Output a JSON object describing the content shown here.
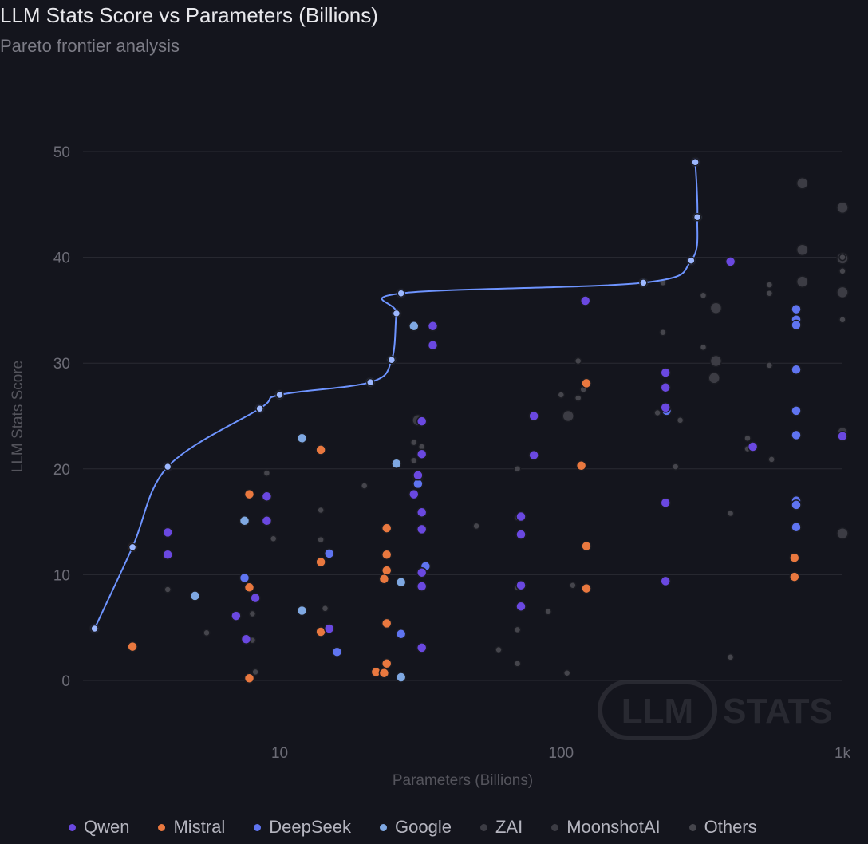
{
  "chart_data": {
    "type": "scatter",
    "title": "LLM Stats Score vs Parameters (Billions)",
    "subtitle": "Pareto frontier analysis",
    "xlabel": "Parameters (Billions)",
    "ylabel": "LLM Stats Score",
    "xscale": "log",
    "xlim": [
      2,
      1000
    ],
    "ylim": [
      0,
      50
    ],
    "xticks": [
      {
        "value": 10,
        "label": "10"
      },
      {
        "value": 100,
        "label": "100"
      },
      {
        "value": 1000,
        "label": "1k"
      }
    ],
    "yticks": [
      0,
      10,
      20,
      30,
      40,
      50
    ],
    "grid": "horizontal",
    "legend_position": "bottom",
    "watermark": "LLM STATS",
    "colors": {
      "Qwen": "#6a48e0",
      "Mistral": "#e9783f",
      "DeepSeek": "#5f74f0",
      "Google": "#7fa8e2",
      "ZAI": "#3c3c44",
      "MoonshotAI": "#3c3c44",
      "Others": "#45454c",
      "frontier": "#6e94ff"
    },
    "series": [
      {
        "name": "Qwen",
        "points": [
          [
            4,
            20.2
          ],
          [
            4,
            14
          ],
          [
            4,
            11.9
          ],
          [
            7,
            6.1
          ],
          [
            7.6,
            3.9
          ],
          [
            8.2,
            7.8
          ],
          [
            9,
            17.4
          ],
          [
            9,
            15.1
          ],
          [
            15,
            4.9
          ],
          [
            32,
            24.5
          ],
          [
            32,
            21.4
          ],
          [
            31,
            19.4
          ],
          [
            30,
            17.6
          ],
          [
            32,
            15.9
          ],
          [
            32,
            14.3
          ],
          [
            32,
            10.2
          ],
          [
            32,
            8.9
          ],
          [
            32,
            3.1
          ],
          [
            35,
            33.5
          ],
          [
            35,
            31.7
          ],
          [
            72,
            15.5
          ],
          [
            72,
            13.8
          ],
          [
            72,
            9
          ],
          [
            72,
            7
          ],
          [
            80,
            25
          ],
          [
            80,
            21.3
          ],
          [
            122,
            35.9
          ],
          [
            235,
            29.1
          ],
          [
            235,
            27.7
          ],
          [
            235,
            25.8
          ],
          [
            235,
            16.8
          ],
          [
            235,
            9.4
          ],
          [
            480,
            22.1
          ],
          [
            1000,
            23.1
          ],
          [
            400,
            39.6
          ]
        ]
      },
      {
        "name": "Mistral",
        "points": [
          [
            3,
            12.6
          ],
          [
            3,
            3.2
          ],
          [
            7.8,
            17.6
          ],
          [
            7.8,
            8.8
          ],
          [
            7.8,
            0.2
          ],
          [
            14,
            21.8
          ],
          [
            14,
            11.2
          ],
          [
            14,
            4.6
          ],
          [
            24,
            14.4
          ],
          [
            24,
            11.9
          ],
          [
            24,
            10.4
          ],
          [
            23.5,
            9.6
          ],
          [
            24,
            5.4
          ],
          [
            24,
            1.6
          ],
          [
            22,
            0.8
          ],
          [
            23.5,
            0.7
          ],
          [
            123,
            28.1
          ],
          [
            123,
            12.7
          ],
          [
            123,
            8.7
          ],
          [
            118,
            20.3
          ],
          [
            675,
            11.6
          ],
          [
            675,
            9.8
          ]
        ]
      },
      {
        "name": "DeepSeek",
        "points": [
          [
            2.2,
            4.9
          ],
          [
            7.5,
            9.7
          ],
          [
            8.5,
            25.7
          ],
          [
            15,
            12
          ],
          [
            16,
            2.7
          ],
          [
            26,
            34.7
          ],
          [
            27,
            36.6
          ],
          [
            27,
            4.4
          ],
          [
            31,
            19.3
          ],
          [
            31,
            18.6
          ],
          [
            33,
            10.8
          ],
          [
            237,
            25.5
          ],
          [
            300,
            49
          ],
          [
            290,
            39.7
          ],
          [
            685,
            35.1
          ],
          [
            685,
            34.1
          ],
          [
            685,
            33.6
          ],
          [
            685,
            29.4
          ],
          [
            685,
            25.5
          ],
          [
            685,
            23.2
          ],
          [
            685,
            17
          ],
          [
            685,
            16.6
          ],
          [
            685,
            14.5
          ]
        ]
      },
      {
        "name": "Google",
        "points": [
          [
            5,
            8
          ],
          [
            7.5,
            15.1
          ],
          [
            12,
            22.9
          ],
          [
            12,
            6.6
          ],
          [
            25,
            30.3
          ],
          [
            26,
            20.5
          ],
          [
            27,
            9.3
          ],
          [
            27,
            0.3
          ],
          [
            30,
            33.5
          ],
          [
            31,
            19.1
          ],
          [
            10,
            27
          ],
          [
            21,
            28.2
          ],
          [
            196,
            37.6
          ],
          [
            305,
            43.8
          ]
        ]
      },
      {
        "name": "ZAI",
        "points": [
          [
            31,
            24.6
          ],
          [
            106,
            25
          ],
          [
            355,
            30.2
          ],
          [
            350,
            28.6
          ],
          [
            355,
            35.2
          ],
          [
            720,
            47
          ],
          [
            720,
            40.7
          ],
          [
            720,
            37.7
          ],
          [
            1000,
            44.7
          ],
          [
            1000,
            39.9
          ],
          [
            1000,
            36.7
          ],
          [
            1000,
            13.9
          ]
        ]
      },
      {
        "name": "MoonshotAI",
        "points": [
          [
            1000,
            23.5
          ]
        ]
      },
      {
        "name": "Others",
        "points": [
          [
            4,
            8.6
          ],
          [
            5.5,
            4.5
          ],
          [
            8,
            6.3
          ],
          [
            8,
            3.8
          ],
          [
            8.2,
            0.8
          ],
          [
            9,
            19.6
          ],
          [
            9.5,
            13.4
          ],
          [
            14,
            16.1
          ],
          [
            14,
            13.3
          ],
          [
            14.5,
            6.8
          ],
          [
            20,
            18.4
          ],
          [
            30,
            22.5
          ],
          [
            30,
            20.8
          ],
          [
            32,
            22.1
          ],
          [
            50,
            14.6
          ],
          [
            60,
            2.9
          ],
          [
            70,
            20
          ],
          [
            70,
            15.4
          ],
          [
            70,
            8.8
          ],
          [
            70,
            4.8
          ],
          [
            70,
            1.6
          ],
          [
            90,
            6.5
          ],
          [
            100,
            27
          ],
          [
            105,
            0.7
          ],
          [
            110,
            9
          ],
          [
            115,
            30.2
          ],
          [
            115,
            26.7
          ],
          [
            120,
            27.5
          ],
          [
            220,
            25.3
          ],
          [
            230,
            37.6
          ],
          [
            230,
            32.9
          ],
          [
            255,
            20.2
          ],
          [
            265,
            24.6
          ],
          [
            320,
            36.4
          ],
          [
            320,
            31.5
          ],
          [
            400,
            15.8
          ],
          [
            400,
            2.2
          ],
          [
            460,
            22.9
          ],
          [
            460,
            21.9
          ],
          [
            550,
            37.4
          ],
          [
            550,
            36.6
          ],
          [
            550,
            29.8
          ],
          [
            560,
            20.9
          ],
          [
            1000,
            40
          ],
          [
            1000,
            38.7
          ],
          [
            1000,
            34.1
          ]
        ]
      }
    ],
    "frontier": [
      [
        2.2,
        4.9
      ],
      [
        3,
        12.6
      ],
      [
        4,
        20.2
      ],
      [
        8.5,
        25.7
      ],
      [
        10,
        27
      ],
      [
        21,
        28.2
      ],
      [
        25,
        30.3
      ],
      [
        26,
        34.7
      ],
      [
        27,
        36.6
      ],
      [
        196,
        37.6
      ],
      [
        290,
        39.7
      ],
      [
        305,
        43.8
      ],
      [
        300,
        49
      ]
    ]
  }
}
